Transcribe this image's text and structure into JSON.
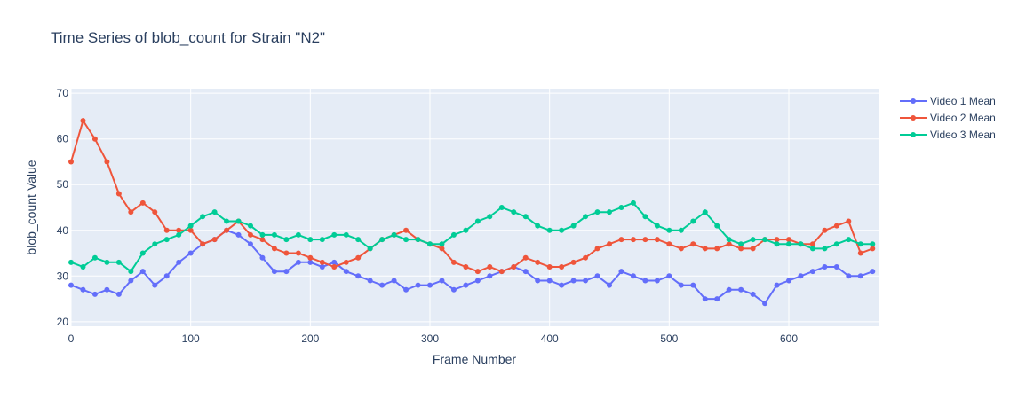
{
  "chart_data": {
    "type": "line",
    "title": "Time Series of blob_count for Strain \"N2\"",
    "xlabel": "Frame Number",
    "ylabel": "blob_count Value",
    "xlim": [
      0,
      675
    ],
    "ylim": [
      19,
      71
    ],
    "xticks": [
      0,
      100,
      200,
      300,
      400,
      500,
      600
    ],
    "yticks": [
      20,
      30,
      40,
      50,
      60,
      70
    ],
    "grid": true,
    "legend_position": "top-right",
    "mode": "lines+markers",
    "series": [
      {
        "name": "Video 1 Mean",
        "color": "#636efa",
        "x": [
          0,
          10,
          20,
          30,
          40,
          50,
          60,
          70,
          80,
          90,
          100,
          110,
          120,
          130,
          140,
          150,
          160,
          170,
          180,
          190,
          200,
          210,
          220,
          230,
          240,
          250,
          260,
          270,
          280,
          290,
          300,
          310,
          320,
          330,
          340,
          350,
          360,
          370,
          380,
          390,
          400,
          410,
          420,
          430,
          440,
          450,
          460,
          470,
          480,
          490,
          500,
          510,
          520,
          530,
          540,
          550,
          560,
          570,
          580,
          590,
          600,
          610,
          620,
          630,
          640,
          650,
          660,
          670
        ],
        "values": [
          28,
          27,
          26,
          27,
          26,
          29,
          31,
          28,
          30,
          33,
          35,
          37,
          38,
          40,
          39,
          37,
          34,
          31,
          31,
          33,
          33,
          32,
          33,
          31,
          30,
          29,
          28,
          29,
          27,
          28,
          28,
          29,
          27,
          28,
          29,
          30,
          31,
          32,
          31,
          29,
          29,
          28,
          29,
          29,
          30,
          28,
          31,
          30,
          29,
          29,
          30,
          28,
          28,
          25,
          25,
          27,
          27,
          26,
          24,
          28,
          29,
          30,
          31,
          32,
          32,
          30,
          30,
          31
        ]
      },
      {
        "name": "Video 2 Mean",
        "color": "#ef553b",
        "x": [
          0,
          10,
          20,
          30,
          40,
          50,
          60,
          70,
          80,
          90,
          100,
          110,
          120,
          130,
          140,
          150,
          160,
          170,
          180,
          190,
          200,
          210,
          220,
          230,
          240,
          250,
          260,
          270,
          280,
          290,
          300,
          310,
          320,
          330,
          340,
          350,
          360,
          370,
          380,
          390,
          400,
          410,
          420,
          430,
          440,
          450,
          460,
          470,
          480,
          490,
          500,
          510,
          520,
          530,
          540,
          550,
          560,
          570,
          580,
          590,
          600,
          610,
          620,
          630,
          640,
          650,
          660,
          670
        ],
        "values": [
          55,
          64,
          60,
          55,
          48,
          44,
          46,
          44,
          40,
          40,
          40,
          37,
          38,
          40,
          42,
          39,
          38,
          36,
          35,
          35,
          34,
          33,
          32,
          33,
          34,
          36,
          38,
          39,
          40,
          38,
          37,
          36,
          33,
          32,
          31,
          32,
          31,
          32,
          34,
          33,
          32,
          32,
          33,
          34,
          36,
          37,
          38,
          38,
          38,
          38,
          37,
          36,
          37,
          36,
          36,
          37,
          36,
          36,
          38,
          38,
          38,
          37,
          37,
          40,
          41,
          42,
          35,
          36
        ]
      },
      {
        "name": "Video 3 Mean",
        "color": "#00cc96",
        "x": [
          0,
          10,
          20,
          30,
          40,
          50,
          60,
          70,
          80,
          90,
          100,
          110,
          120,
          130,
          140,
          150,
          160,
          170,
          180,
          190,
          200,
          210,
          220,
          230,
          240,
          250,
          260,
          270,
          280,
          290,
          300,
          310,
          320,
          330,
          340,
          350,
          360,
          370,
          380,
          390,
          400,
          410,
          420,
          430,
          440,
          450,
          460,
          470,
          480,
          490,
          500,
          510,
          520,
          530,
          540,
          550,
          560,
          570,
          580,
          590,
          600,
          610,
          620,
          630,
          640,
          650,
          660,
          670
        ],
        "values": [
          33,
          32,
          34,
          33,
          33,
          31,
          35,
          37,
          38,
          39,
          41,
          43,
          44,
          42,
          42,
          41,
          39,
          39,
          38,
          39,
          38,
          38,
          39,
          39,
          38,
          36,
          38,
          39,
          38,
          38,
          37,
          37,
          39,
          40,
          42,
          43,
          45,
          44,
          43,
          41,
          40,
          40,
          41,
          43,
          44,
          44,
          45,
          46,
          43,
          41,
          40,
          40,
          42,
          44,
          41,
          38,
          37,
          38,
          38,
          37,
          37,
          37,
          36,
          36,
          37,
          38,
          37,
          37
        ]
      }
    ]
  }
}
